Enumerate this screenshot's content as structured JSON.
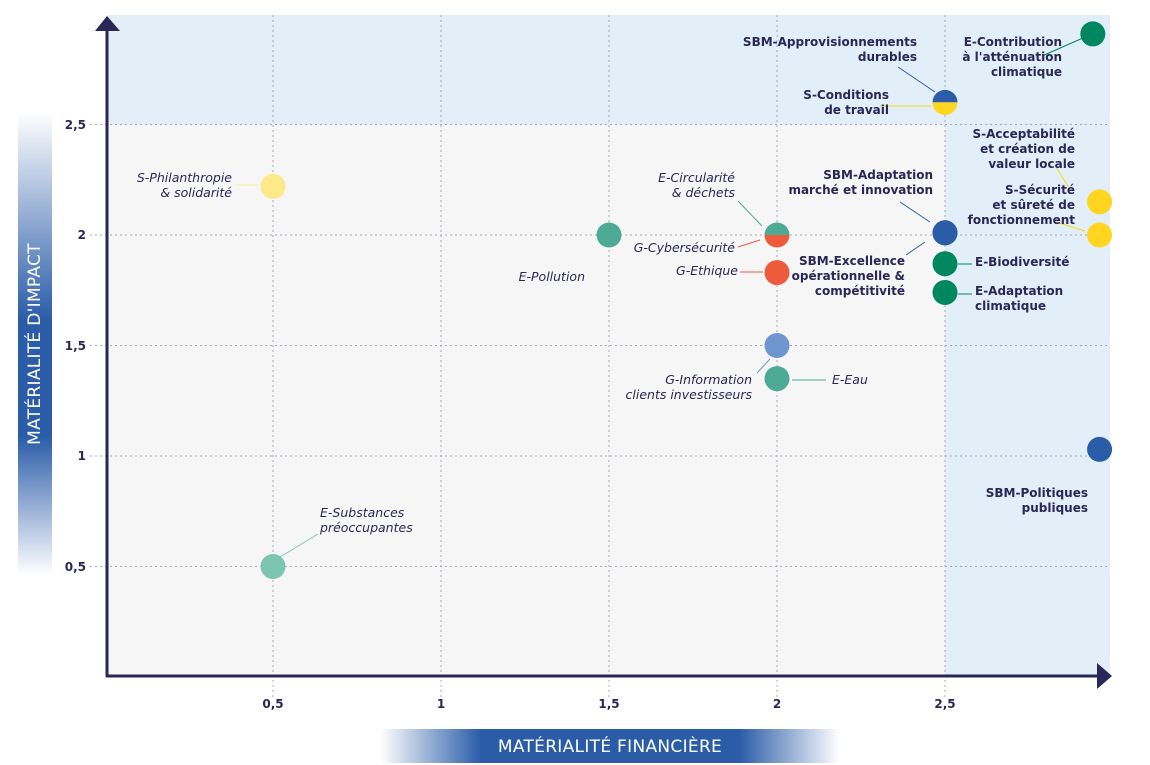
{
  "chart_data": {
    "type": "scatter",
    "xlabel": "MATÉRIALITÉ FINANCIÈRE",
    "ylabel": "MATÉRIALITÉ D'IMPACT",
    "xlim": [
      0,
      3
    ],
    "ylim": [
      0,
      3
    ],
    "x_ticks": [
      "0,5",
      "1",
      "1,5",
      "2",
      "2,5"
    ],
    "y_ticks": [
      "0,5",
      "1",
      "1,5",
      "2",
      "2,5"
    ],
    "grid": "dotted",
    "highlight_zone": "x > 2.5 or y > 2.5",
    "colors": {
      "zone": "#e2eef8",
      "plot_bg": "#f6f6f6",
      "axis": "#2a2757"
    },
    "points": [
      {
        "label": [
          "S-Philanthropie",
          "& solidarité"
        ],
        "x": 0.5,
        "y": 2.22,
        "color": "#fde98a"
      },
      {
        "label": [
          "E-Pollution"
        ],
        "x": 1.5,
        "y": 2.0,
        "color": "#4daa94"
      },
      {
        "label": [
          "E-Circularité",
          "& déchets"
        ],
        "x": 2.0,
        "y": 2.0,
        "color": "#4daa94",
        "half": "top"
      },
      {
        "label": [
          "G-Cybersécurité"
        ],
        "x": 2.0,
        "y": 2.0,
        "color": "#ee5a3c",
        "half": "bottom"
      },
      {
        "label": [
          "G-Ethique"
        ],
        "x": 2.0,
        "y": 1.83,
        "color": "#ee5a3c"
      },
      {
        "label": [
          "G-Information",
          "clients investisseurs"
        ],
        "x": 2.0,
        "y": 1.5,
        "color": "#6f96cf"
      },
      {
        "label": [
          "E-Eau"
        ],
        "x": 2.0,
        "y": 1.35,
        "color": "#4daa94"
      },
      {
        "label": [
          "E-Substances",
          "préoccupantes"
        ],
        "x": 0.5,
        "y": 0.5,
        "color": "#7cc6b0"
      },
      {
        "label": [
          "SBM-Approvisionnements",
          "durables"
        ],
        "x": 2.5,
        "y": 2.6,
        "color": "#2a5ca8",
        "half": "top"
      },
      {
        "label": [
          "S-Conditions",
          "de travail"
        ],
        "x": 2.5,
        "y": 2.6,
        "color": "#ffd520",
        "half": "bottom"
      },
      {
        "label": [
          "E-Contribution",
          "à l'atténuation",
          "climatique"
        ],
        "x": 2.94,
        "y": 2.91,
        "color": "#00875f"
      },
      {
        "label": [
          "SBM-Adaptation",
          "marché et innovation"
        ],
        "x": 2.5,
        "y": 2.01,
        "color": "#2a5ca8"
      },
      {
        "label": [
          "SBM-Excellence",
          "opérationnelle &",
          "compétitivité"
        ],
        "x": 2.5,
        "y": 2.01,
        "color": "#2a5ca8"
      },
      {
        "label": [
          "E-Biodiversité"
        ],
        "x": 2.5,
        "y": 1.87,
        "color": "#00875f"
      },
      {
        "label": [
          "E-Adaptation",
          "climatique"
        ],
        "x": 2.5,
        "y": 1.74,
        "color": "#00875f"
      },
      {
        "label": [
          "S-Acceptabilité",
          "et création de",
          "valeur locale"
        ],
        "x": 2.96,
        "y": 2.15,
        "color": "#ffd520"
      },
      {
        "label": [
          "S-Sécurité",
          "et sûreté de",
          "fonctionnement"
        ],
        "x": 2.96,
        "y": 2.0,
        "color": "#ffd520"
      },
      {
        "label": [
          "SBM-Politiques",
          "publiques"
        ],
        "x": 2.96,
        "y": 1.03,
        "color": "#2a5ca8"
      }
    ]
  }
}
